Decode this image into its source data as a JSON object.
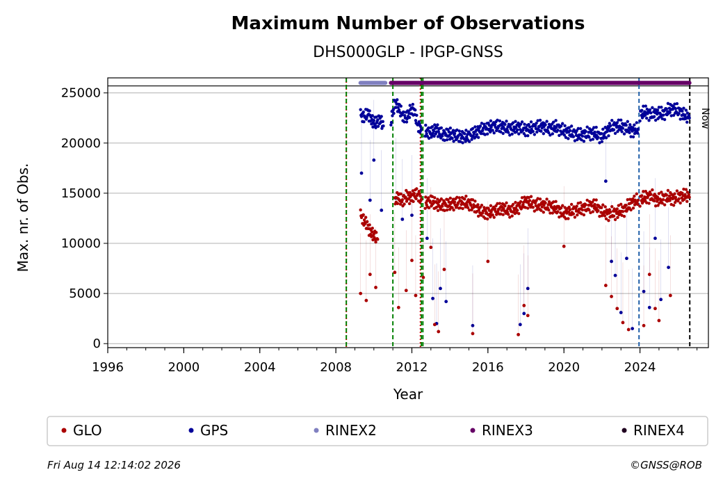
{
  "chart_data": {
    "type": "scatter",
    "title": "Maximum Number of Observations",
    "subtitle": "DHS000GLP - IPGP-GNSS",
    "xlabel": "Year",
    "ylabel": "Max. nr. of Obs.",
    "xlim": [
      1996,
      2027.6
    ],
    "ylim": [
      -400,
      26500
    ],
    "xticks": [
      "1996",
      "2000",
      "2004",
      "2008",
      "2012",
      "2016",
      "2020",
      "2024"
    ],
    "yticks": [
      "0",
      "5000",
      "10000",
      "15000",
      "20000",
      "25000"
    ],
    "grid": "horizontal",
    "legend_position": "bottom",
    "reference_line_y": 25700,
    "vertical_lines": [
      {
        "x": 2008.55,
        "color": "#cc0000",
        "style": "dotted"
      },
      {
        "x": 2008.55,
        "color": "#008000",
        "style": "dashed"
      },
      {
        "x": 2011.0,
        "color": "#008000",
        "style": "dashed"
      },
      {
        "x": 2012.45,
        "color": "#cc0000",
        "style": "dotted"
      },
      {
        "x": 2012.5,
        "color": "#008000",
        "style": "dashed"
      },
      {
        "x": 2012.58,
        "color": "#008000",
        "style": "dashed"
      },
      {
        "x": 2023.95,
        "color": "#1f5fa8",
        "style": "dashed"
      },
      {
        "x": 2026.62,
        "color": "#000000",
        "style": "dashed"
      }
    ],
    "now_label": "Now",
    "format_bars": [
      {
        "name": "RINEX2",
        "color": "#8080c0",
        "y": 26000,
        "start": 2009.3,
        "end": 2010.6
      },
      {
        "name": "RINEX3",
        "color": "#660066",
        "y": 26000,
        "start": 2010.9,
        "end": 2023.9
      },
      {
        "name": "RINEX3",
        "color": "#660066",
        "y": 26000,
        "start": 2023.9,
        "end": 2026.6
      }
    ],
    "series": [
      {
        "name": "GPS",
        "color": "#000099",
        "segments": [
          {
            "x": [
              2009.3,
              2009.5,
              2009.7,
              2009.9,
              2010.1,
              2010.3,
              2010.5
            ],
            "y": [
              22800,
              22600,
              23000,
              22200,
              22000,
              22400,
              21700
            ]
          },
          {
            "x": [
              2010.9,
              2011.1,
              2011.3,
              2011.5,
              2011.7,
              2011.9,
              2012.1,
              2012.3,
              2012.5
            ],
            "y": [
              22200,
              24000,
              23600,
              22800,
              22500,
              23200,
              23400,
              21800,
              21400
            ]
          },
          {
            "x": [
              2012.7,
              2013.0,
              2013.3,
              2013.6,
              2014.0,
              2014.4,
              2014.8,
              2015.2,
              2015.6,
              2016.0,
              2016.4,
              2016.8,
              2017.2,
              2017.6,
              2018.0,
              2018.4,
              2018.8,
              2019.2,
              2019.6,
              2020.0,
              2020.4,
              2020.8,
              2021.2,
              2021.6,
              2022.0,
              2022.4,
              2022.8,
              2023.2,
              2023.6,
              2023.9
            ],
            "y": [
              21200,
              21000,
              21400,
              20800,
              20900,
              20700,
              20600,
              20900,
              21300,
              21500,
              21700,
              21600,
              21400,
              21600,
              21300,
              21500,
              21700,
              21400,
              21600,
              21200,
              21000,
              20800,
              20900,
              21000,
              20600,
              21500,
              21700,
              21600,
              21200,
              21400
            ]
          },
          {
            "x": [
              2024.0,
              2024.3,
              2024.6,
              2024.9,
              2025.2,
              2025.5,
              2025.8,
              2026.1,
              2026.4,
              2026.6
            ],
            "y": [
              22900,
              23100,
              22800,
              23000,
              22900,
              23300,
              23400,
              23100,
              22700,
              22500
            ]
          }
        ],
        "outliers": {
          "x": [
            2009.35,
            2009.8,
            2010.0,
            2010.4,
            2011.15,
            2011.5,
            2012.0,
            2012.8,
            2013.1,
            2013.3,
            2013.5,
            2013.8,
            2015.2,
            2017.7,
            2017.9,
            2018.1,
            2022.2,
            2022.5,
            2022.7,
            2023.0,
            2023.3,
            2023.6,
            2024.2,
            2024.5,
            2024.8,
            2025.1,
            2025.5
          ],
          "y": [
            17000,
            14300,
            18300,
            13300,
            14500,
            12400,
            12800,
            10500,
            4500,
            2000,
            5500,
            4200,
            1800,
            1900,
            3000,
            5500,
            16200,
            8200,
            6800,
            3100,
            8500,
            1500,
            5200,
            3600,
            10500,
            4400,
            7600
          ]
        }
      },
      {
        "name": "GLO",
        "color": "#aa0000",
        "segments": [
          {
            "x": [
              2009.3,
              2009.45,
              2009.6,
              2009.75,
              2009.9,
              2010.05,
              2010.2
            ],
            "y": [
              12800,
              12400,
              11900,
              11400,
              11000,
              10700,
              10400
            ]
          },
          {
            "x": [
              2011.1,
              2011.3,
              2011.5,
              2011.7,
              2011.9,
              2012.1,
              2012.3,
              2012.5
            ],
            "y": [
              14300,
              14600,
              14200,
              14700,
              14500,
              14800,
              14900,
              14400
            ]
          },
          {
            "x": [
              2012.7,
              2013.0,
              2013.3,
              2013.6,
              2014.0,
              2014.4,
              2014.8,
              2015.2,
              2015.6,
              2016.0,
              2016.4,
              2016.8,
              2017.2,
              2017.6,
              2018.0,
              2018.4,
              2018.8,
              2019.2,
              2019.6,
              2020.0,
              2020.4,
              2020.8,
              2021.2,
              2021.6,
              2022.0,
              2022.4,
              2022.8,
              2023.2,
              2023.6,
              2023.9
            ],
            "y": [
              14000,
              14200,
              13900,
              13800,
              13900,
              14000,
              14100,
              13800,
              13200,
              13000,
              13300,
              13500,
              13200,
              13600,
              14200,
              13900,
              13800,
              13700,
              13500,
              13000,
              13200,
              13400,
              13600,
              13800,
              13200,
              12900,
              13100,
              13400,
              14100,
              14300
            ]
          },
          {
            "x": [
              2024.0,
              2024.3,
              2024.6,
              2024.9,
              2025.2,
              2025.5,
              2025.8,
              2026.1,
              2026.4,
              2026.6
            ],
            "y": [
              14400,
              14600,
              14700,
              14300,
              14500,
              14600,
              14400,
              14700,
              14800,
              14600
            ]
          }
        ],
        "outliers": {
          "x": [
            2009.3,
            2009.6,
            2009.8,
            2010.1,
            2011.1,
            2011.3,
            2011.7,
            2012.0,
            2012.2,
            2012.6,
            2013.0,
            2013.2,
            2013.4,
            2013.7,
            2015.2,
            2016.0,
            2017.6,
            2017.9,
            2018.1,
            2020.0,
            2022.2,
            2022.5,
            2022.8,
            2023.1,
            2023.4,
            2024.2,
            2024.5,
            2024.8,
            2025.0,
            2025.6
          ],
          "y": [
            5000,
            4300,
            6900,
            5600,
            7100,
            3600,
            5300,
            8300,
            4800,
            6600,
            9600,
            1900,
            1200,
            7400,
            1000,
            8200,
            900,
            3800,
            2800,
            9700,
            5800,
            4700,
            3500,
            2100,
            1400,
            1800,
            6900,
            3500,
            2300,
            4800
          ]
        }
      }
    ],
    "legend": [
      {
        "label": "GLO",
        "color": "#aa0000"
      },
      {
        "label": "GPS",
        "color": "#000099"
      },
      {
        "label": "RINEX2",
        "color": "#8080c0"
      },
      {
        "label": "RINEX3",
        "color": "#660066"
      },
      {
        "label": "RINEX4",
        "color": "#200020"
      }
    ]
  },
  "footer": {
    "timestamp": "Fri Aug 14 12:14:02 2026",
    "credit": "©GNSS@ROB"
  }
}
